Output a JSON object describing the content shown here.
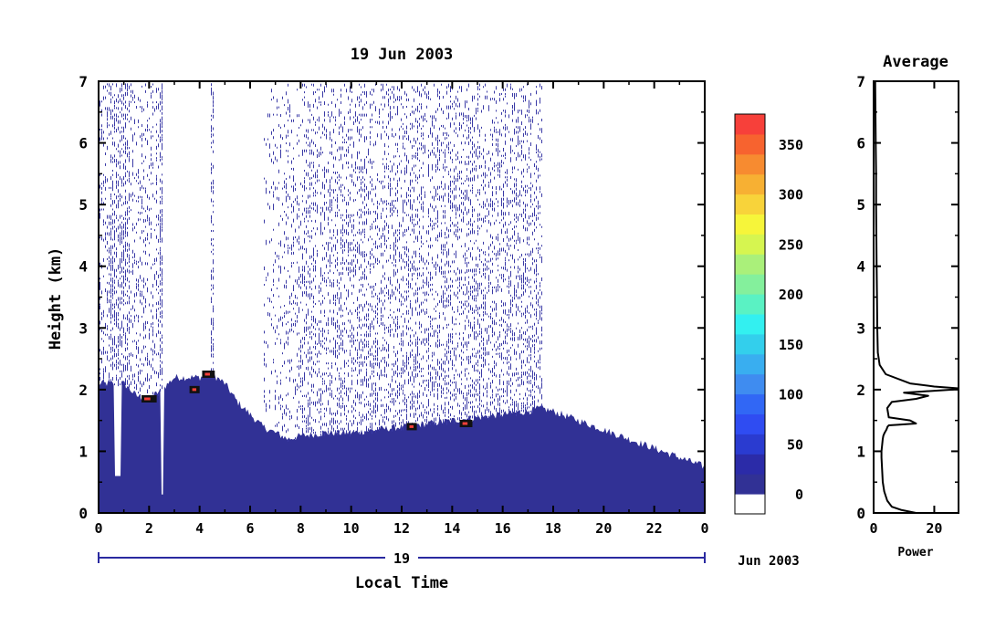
{
  "chart_data": [
    {
      "type": "heatmap",
      "title": "19 Jun 2003",
      "xlabel": "Local Time",
      "ylabel": "Height (km)",
      "xlim": [
        0,
        24
      ],
      "ylim": [
        0,
        7
      ],
      "x_ticks": [
        "0",
        "2",
        "4",
        "6",
        "8",
        "10",
        "12",
        "14",
        "16",
        "18",
        "20",
        "22",
        "0"
      ],
      "y_ticks": [
        "0",
        "1",
        "2",
        "3",
        "4",
        "5",
        "6",
        "7"
      ],
      "date_bar_label": "19",
      "date_suffix": "Jun 2003",
      "colorbar": {
        "ticks": [
          "0",
          "50",
          "100",
          "150",
          "200",
          "250",
          "300",
          "350"
        ],
        "range": [
          0,
          380
        ],
        "colors": [
          "#ffffff",
          "#313195",
          "#2b2ba8",
          "#2a3bd0",
          "#2f4cf2",
          "#3167f5",
          "#3f8cf0",
          "#39aef0",
          "#33cfec",
          "#33f0f0",
          "#5af2c3",
          "#84f09c",
          "#aaf07a",
          "#d6f550",
          "#f6f53a",
          "#f8d33a",
          "#f7b033",
          "#f78b30",
          "#f7632f",
          "#f7403a"
        ]
      },
      "boundary_layer_top_km": {
        "x": [
          0,
          0.5,
          1,
          1.5,
          2,
          2.5,
          3,
          3.5,
          4,
          4.5,
          5,
          5.5,
          6,
          6.5,
          7,
          7.5,
          8,
          9,
          10,
          11,
          12,
          13,
          14,
          15,
          16,
          17,
          17.5,
          18,
          19,
          20,
          21,
          22,
          23,
          24
        ],
        "y": [
          2.1,
          2.1,
          2.1,
          1.9,
          1.85,
          2.0,
          2.2,
          2.2,
          2.2,
          2.25,
          2.1,
          1.8,
          1.6,
          1.4,
          1.3,
          1.2,
          1.25,
          1.3,
          1.3,
          1.35,
          1.4,
          1.45,
          1.5,
          1.55,
          1.6,
          1.65,
          1.7,
          1.65,
          1.5,
          1.35,
          1.2,
          1.05,
          0.9,
          0.75
        ]
      },
      "strong_echo_segments": [
        {
          "x": [
            1.7,
            2.3
          ],
          "y": 1.85
        },
        {
          "x": [
            3.6,
            4.0
          ],
          "y": 2.0
        },
        {
          "x": [
            4.1,
            4.6
          ],
          "y": 2.25
        },
        {
          "x": [
            12.2,
            12.6
          ],
          "y": 1.4
        },
        {
          "x": [
            14.3,
            14.8
          ],
          "y": 1.45
        }
      ]
    },
    {
      "type": "line",
      "title": "Average",
      "xlabel": "Power",
      "ylabel": "",
      "xlim": [
        0,
        28
      ],
      "ylim": [
        0,
        7
      ],
      "x_ticks": [
        "0",
        "20"
      ],
      "y_ticks": [
        "0",
        "1",
        "2",
        "3",
        "4",
        "5",
        "6",
        "7"
      ],
      "series": [
        {
          "x": [
            14,
            9,
            6,
            4.5,
            3.5,
            3,
            2.8,
            2.6,
            2.6,
            2.8,
            3,
            3.2,
            3.6,
            4.2,
            4.6,
            5,
            8,
            14,
            12,
            5,
            4.5,
            6,
            14,
            18,
            10,
            26,
            28,
            20,
            12,
            4,
            2,
            1.4,
            1.2,
            1.1,
            1.0,
            0.9,
            0.8,
            0.8,
            0.7,
            0.6,
            0.5
          ],
          "y": [
            0.0,
            0.05,
            0.1,
            0.2,
            0.35,
            0.5,
            0.7,
            0.9,
            1.0,
            1.1,
            1.2,
            1.25,
            1.3,
            1.35,
            1.4,
            1.42,
            1.43,
            1.45,
            1.5,
            1.55,
            1.7,
            1.8,
            1.85,
            1.9,
            1.95,
            2.0,
            2.02,
            2.05,
            2.1,
            2.25,
            2.4,
            2.6,
            3.0,
            3.5,
            4.0,
            4.5,
            5.0,
            5.5,
            6.0,
            6.5,
            7.0
          ]
        }
      ]
    }
  ]
}
